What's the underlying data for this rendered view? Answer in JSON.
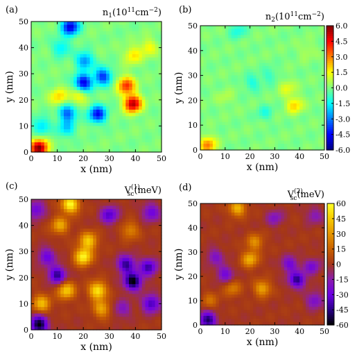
{
  "chart_data": [
    {
      "type": "heatmap",
      "panel_label": "(a)",
      "title": "n1(10^11cm^-2)",
      "title_main": "n",
      "title_sub": "1",
      "title_unit": "(10",
      "title_exp1": "11",
      "title_cm": "cm",
      "title_exp2": "−2",
      "title_close": ")",
      "xlabel": "x  (nm)",
      "ylabel": "y  (nm)",
      "xlim": [
        0,
        50
      ],
      "ylim": [
        0,
        50
      ],
      "xticks": [
        "0",
        "10",
        "20",
        "30",
        "40",
        "50"
      ],
      "yticks": [
        "0",
        "10",
        "20",
        "30",
        "40",
        "50"
      ],
      "colormap": "jet",
      "vmin": -6.0,
      "vmax": 6.0,
      "features": [
        {
          "x": 3,
          "y": 1.5,
          "value": 6.0
        },
        {
          "x": 39,
          "y": 18.5,
          "value": 5.5
        },
        {
          "x": 36.5,
          "y": 25.5,
          "value": 4.0
        },
        {
          "x": 10.5,
          "y": 21,
          "value": 2.0
        },
        {
          "x": 18,
          "y": 21.5,
          "value": 1.8
        },
        {
          "x": 15,
          "y": 48,
          "value": -5.0
        },
        {
          "x": 20,
          "y": 26.5,
          "value": -5.0
        },
        {
          "x": 25.5,
          "y": 14.5,
          "value": -4.5
        },
        {
          "x": 27.5,
          "y": 29,
          "value": -4.0
        },
        {
          "x": 20.5,
          "y": 35,
          "value": -3.0
        },
        {
          "x": 14,
          "y": 15,
          "value": -3.5
        },
        {
          "x": 4,
          "y": 10,
          "value": -2.0
        },
        {
          "x": 11.5,
          "y": 40,
          "value": -1.8
        },
        {
          "x": 13.5,
          "y": 9,
          "value": -2.0
        },
        {
          "x": 39,
          "y": 37,
          "value": 1.8
        },
        {
          "x": 45,
          "y": 40,
          "value": 1.5
        }
      ]
    },
    {
      "type": "heatmap",
      "panel_label": "(b)",
      "title": "n2(10^11cm^-2)",
      "title_main": "n",
      "title_sub": "2",
      "title_unit": "(10",
      "title_exp1": "11",
      "title_cm": "cm",
      "title_exp2": "−2",
      "title_close": ")",
      "xlabel": "x  (nm)",
      "ylabel": "y  (nm)",
      "xlim": [
        0,
        50
      ],
      "ylim": [
        0,
        50
      ],
      "xticks": [
        "0",
        "10",
        "20",
        "30",
        "40",
        "50"
      ],
      "yticks": [
        "0",
        "10",
        "20",
        "30",
        "40",
        "50"
      ],
      "colormap": "jet",
      "vmin": -6.0,
      "vmax": 6.0,
      "colorbar_ticks": [
        "6.0",
        "4.5",
        "3.0",
        "1.5",
        "0.0",
        "-1.5",
        "-3.0",
        "-4.5",
        "-6.0"
      ],
      "features": [
        {
          "x": 3,
          "y": 2,
          "value": 3.0
        },
        {
          "x": 38,
          "y": 18,
          "value": 2.0
        },
        {
          "x": 35,
          "y": 25,
          "value": 1.2
        },
        {
          "x": 15,
          "y": 48,
          "value": -1.2
        },
        {
          "x": 21,
          "y": 27,
          "value": -1.2
        },
        {
          "x": 26,
          "y": 15,
          "value": -1.0
        },
        {
          "x": 28,
          "y": 30,
          "value": -0.9
        },
        {
          "x": 10,
          "y": 21,
          "value": 0.6
        },
        {
          "x": 43,
          "y": 40,
          "value": 0.6
        }
      ]
    },
    {
      "type": "heatmap",
      "panel_label": "(c)",
      "title": "Vsc(1)(meV)",
      "title_main": "V",
      "title_sub": "sc",
      "title_sup": "(1)",
      "title_unit": "(meV)",
      "xlabel": "x  (nm)",
      "ylabel": "y  (nm)",
      "xlim": [
        0,
        50
      ],
      "ylim": [
        0,
        50
      ],
      "xticks": [
        "0",
        "10",
        "20",
        "30",
        "40",
        "50"
      ],
      "yticks": [
        "0",
        "10",
        "20",
        "30",
        "40",
        "50"
      ],
      "colormap": "gnuplot",
      "vmin": -60,
      "vmax": 60,
      "features": [
        {
          "x": 15,
          "y": 48,
          "value": 60
        },
        {
          "x": 20,
          "y": 28,
          "value": 58
        },
        {
          "x": 22,
          "y": 34,
          "value": 45
        },
        {
          "x": 25.5,
          "y": 15,
          "value": 55
        },
        {
          "x": 27,
          "y": 8,
          "value": 35
        },
        {
          "x": 13.5,
          "y": 15,
          "value": 45
        },
        {
          "x": 4,
          "y": 10,
          "value": 40
        },
        {
          "x": 11,
          "y": 40,
          "value": 35
        },
        {
          "x": 38,
          "y": 38,
          "value": 25
        },
        {
          "x": 3,
          "y": 2,
          "value": -60
        },
        {
          "x": 39,
          "y": 18.5,
          "value": -60
        },
        {
          "x": 36.5,
          "y": 25,
          "value": -45
        },
        {
          "x": 10,
          "y": 21,
          "value": -45
        },
        {
          "x": 45,
          "y": 24,
          "value": -40
        },
        {
          "x": 46,
          "y": 10,
          "value": -40
        },
        {
          "x": 6,
          "y": 28,
          "value": -30
        },
        {
          "x": 30,
          "y": 44,
          "value": -35
        },
        {
          "x": 46,
          "y": 45,
          "value": -30
        },
        {
          "x": 2,
          "y": 46,
          "value": -30
        },
        {
          "x": 35,
          "y": 8,
          "value": -20
        }
      ]
    },
    {
      "type": "heatmap",
      "panel_label": "(d)",
      "title": "Vsc(2)(meV)",
      "title_main": "V",
      "title_sub": "sc",
      "title_sup": "(2)",
      "title_unit": "(meV)",
      "xlabel": "x  (nm)",
      "ylabel": "y  (nm)",
      "xlim": [
        0,
        50
      ],
      "ylim": [
        0,
        50
      ],
      "xticks": [
        "0",
        "10",
        "20",
        "30",
        "40",
        "50"
      ],
      "yticks": [
        "0",
        "10",
        "20",
        "30",
        "40",
        "50"
      ],
      "colormap": "gnuplot",
      "vmin": -60,
      "vmax": 60,
      "colorbar_ticks": [
        "60",
        "45",
        "30",
        "15",
        "0",
        "-15",
        "-30",
        "-45",
        "-60"
      ],
      "features": [
        {
          "x": 15,
          "y": 48,
          "value": 40
        },
        {
          "x": 20,
          "y": 27,
          "value": 38
        },
        {
          "x": 25,
          "y": 15,
          "value": 35
        },
        {
          "x": 22,
          "y": 34,
          "value": 28
        },
        {
          "x": 13,
          "y": 15,
          "value": 22
        },
        {
          "x": 4,
          "y": 10,
          "value": 18
        },
        {
          "x": 3,
          "y": 2,
          "value": -50
        },
        {
          "x": 39,
          "y": 18.5,
          "value": -45
        },
        {
          "x": 36,
          "y": 25,
          "value": -28
        },
        {
          "x": 10,
          "y": 21,
          "value": -28
        },
        {
          "x": 45,
          "y": 24,
          "value": -25
        },
        {
          "x": 46,
          "y": 10,
          "value": -25
        },
        {
          "x": 6,
          "y": 28,
          "value": -22
        },
        {
          "x": 30,
          "y": 44,
          "value": -20
        },
        {
          "x": 46,
          "y": 45,
          "value": -18
        }
      ]
    }
  ]
}
